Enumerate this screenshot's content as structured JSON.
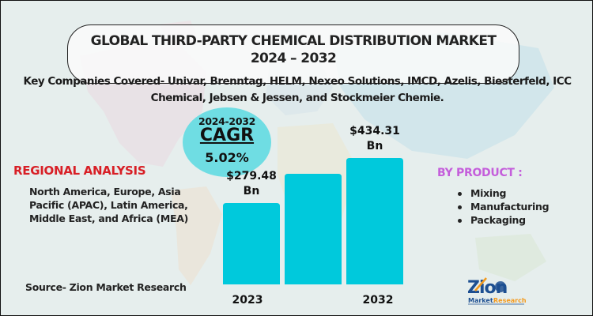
{
  "header": {
    "title_line1": "GLOBAL THIRD-PARTY CHEMICAL DISTRIBUTION MARKET",
    "title_line2": "2024 – 2032"
  },
  "companies": {
    "line1": "Key Companies Covered- Univar, Brenntag, HELM, Nexeo Solutions, IMCD, Azelis, Biesterfeld, ICC",
    "line2": "Chemical, Jebsen & Jessen, and Stockmeier Chemie."
  },
  "cagr": {
    "period": "2024-2032",
    "label": "CAGR",
    "value": "5.02%"
  },
  "regional": {
    "title": "REGIONAL ANALYSIS",
    "body": "North America, Europe, Asia Pacific (APAC), Latin America, Middle East, and Africa (MEA)"
  },
  "product": {
    "title": "BY PRODUCT :",
    "items": [
      "Mixing",
      "Manufacturing",
      "Packaging"
    ]
  },
  "source": "Source- Zion Market Research",
  "logo": {
    "word": "Zion",
    "sub_left": "Market.",
    "sub_right": "Research"
  },
  "colors": {
    "bar": "#00c9dc",
    "cagr_circle": "#6fdde3",
    "regional_title": "#d81f26",
    "product_title": "#c45edb",
    "background": "#e6eeed"
  },
  "chart_data": {
    "type": "bar",
    "title": "Global Third-Party Chemical Distribution Market",
    "categories": [
      "2023",
      "",
      "2032"
    ],
    "values": [
      279.48,
      380,
      434.31
    ],
    "data_labels": [
      "$279.48\nBn",
      "",
      "$434.31\nBn"
    ],
    "unit": "USD Billion",
    "xlabel": "",
    "ylabel": "",
    "ylim": [
      0,
      480
    ],
    "grid": false,
    "legend": "none"
  }
}
